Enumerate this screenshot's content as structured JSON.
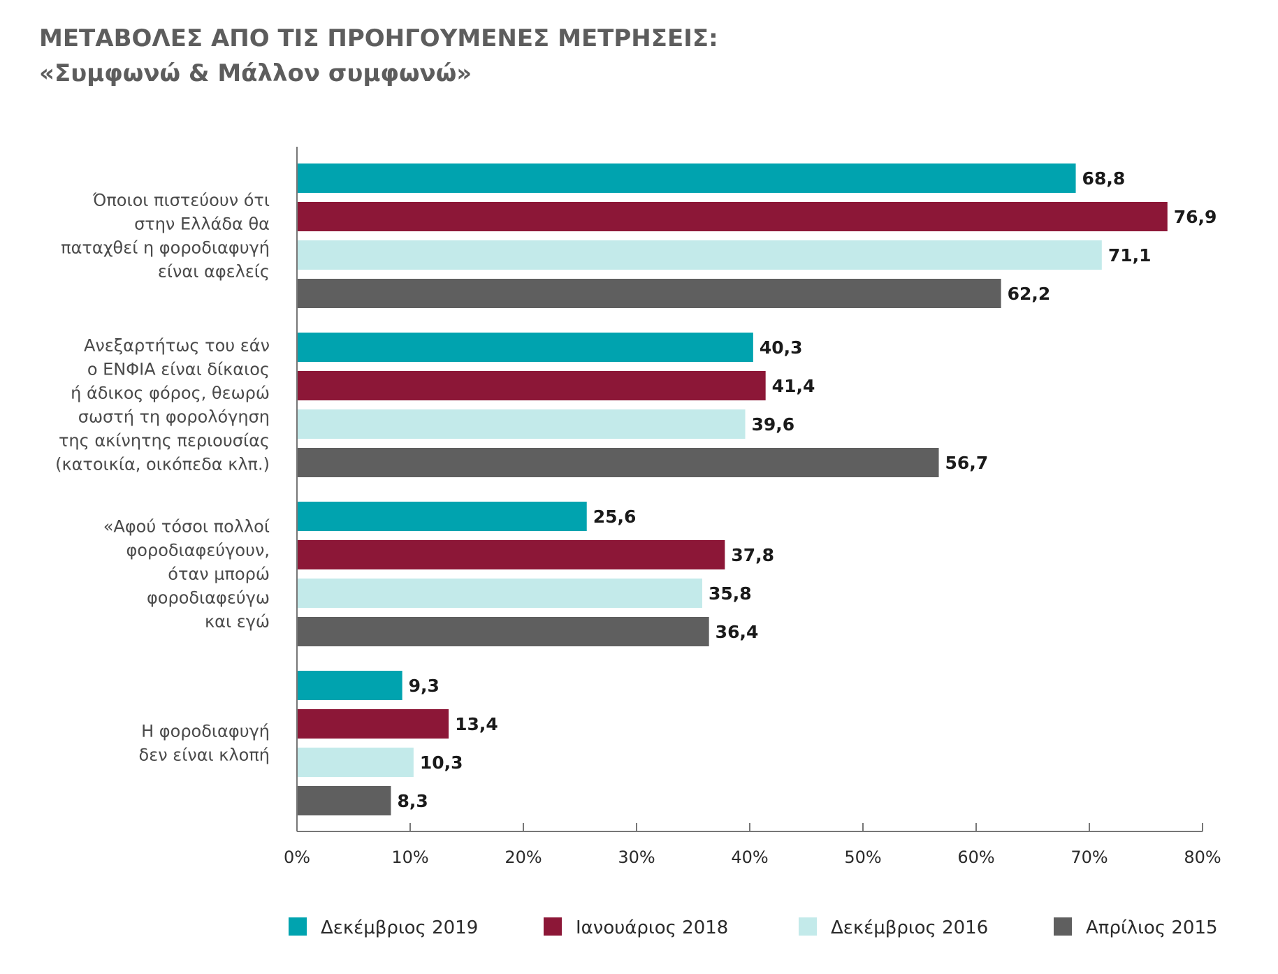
{
  "title_lines": [
    "ΜΕΤΑΒΟΛΕΣ ΑΠΟ ΤΙΣ ΠΡΟΗΓΟΥΜΕΝΕΣ ΜΕΤΡΗΣΕΙΣ:",
    "«Συμφωνώ & Μάλλον συμφωνώ»"
  ],
  "chart_data": {
    "type": "bar",
    "orientation": "horizontal",
    "title": "ΜΕΤΑΒΟΛΕΣ ΑΠΟ ΤΙΣ ΠΡΟΗΓΟΥΜΕΝΕΣ ΜΕΤΡΗΣΕΙΣ: «Συμφωνώ & Μάλλον συμφωνώ»",
    "categories": [
      [
        "Όποιοι πιστεύουν ότι",
        "στην Ελλάδα θα",
        "παταχθεί η φοροδιαφυγή",
        "είναι αφελείς"
      ],
      [
        "Ανεξαρτήτως του εάν",
        "ο ΕΝΦΙΑ είναι δίκαιος",
        "ή άδικος φόρος, θεωρώ",
        "σωστή τη φορολόγηση",
        "της ακίνητης περιουσίας",
        "(κατοικία, οικόπεδα κλπ.)"
      ],
      [
        "«Αφού τόσοι πολλοί",
        "φοροδιαφεύγουν,",
        "όταν μπορώ",
        "φοροδιαφεύγω",
        "και εγώ"
      ],
      [
        "Η φοροδιαφυγή",
        "δεν είναι κλοπή"
      ]
    ],
    "series": [
      {
        "name": "Δεκέμβριος 2019",
        "color": "#00a3af",
        "values": [
          68.8,
          40.3,
          25.6,
          9.3
        ],
        "labels": [
          "68,8",
          "40,3",
          "25,6",
          "9,3"
        ]
      },
      {
        "name": "Ιανουάριος 2018",
        "color": "#8c1737",
        "values": [
          76.9,
          41.4,
          37.8,
          13.4
        ],
        "labels": [
          "76,9",
          "41,4",
          "37,8",
          "13,4"
        ]
      },
      {
        "name": "Δεκέμβριος 2016",
        "color": "#c3eaea",
        "values": [
          71.1,
          39.6,
          35.8,
          10.3
        ],
        "labels": [
          "71,1",
          "39,6",
          "35,8",
          "10,3"
        ]
      },
      {
        "name": "Απρίλιος 2015",
        "color": "#5f5f5f",
        "values": [
          62.2,
          56.7,
          36.4,
          8.3
        ],
        "labels": [
          "62,2",
          "56,7",
          "36,4",
          "8,3"
        ]
      }
    ],
    "xlim": [
      0,
      80
    ],
    "xticks": [
      "0%",
      "10%",
      "20%",
      "30%",
      "40%",
      "50%",
      "60%",
      "70%",
      "80%"
    ],
    "grid": false,
    "legend_position": "bottom"
  }
}
